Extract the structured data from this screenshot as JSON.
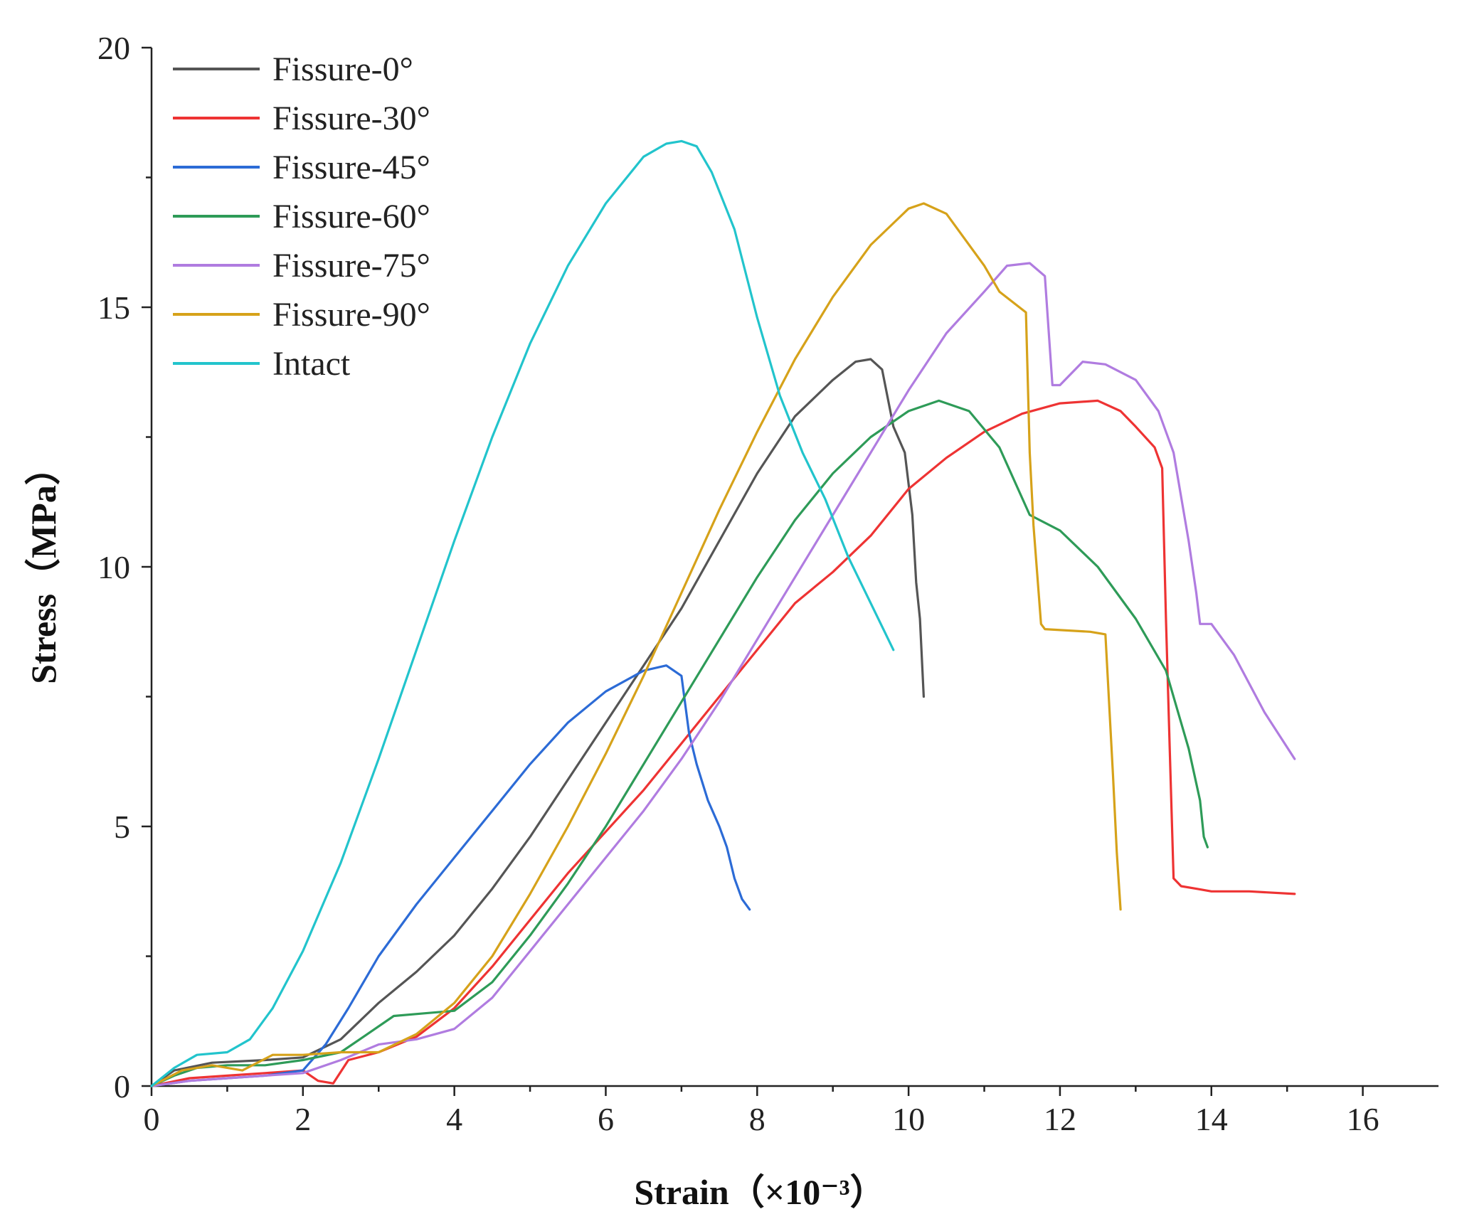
{
  "chart_data": {
    "type": "line",
    "title": "",
    "xlabel": "Strain（×10⁻³）",
    "ylabel": "Stress（MPa）",
    "xlim": [
      0,
      17
    ],
    "ylim": [
      0,
      20
    ],
    "xticks": [
      0,
      2,
      4,
      6,
      8,
      10,
      12,
      14,
      16
    ],
    "yticks": [
      0,
      5,
      10,
      15,
      20
    ],
    "legend_position": "top-left",
    "series": [
      {
        "name": "Fissure-0°",
        "color": "#555555",
        "x": [
          0,
          0.3,
          0.8,
          1.5,
          2.0,
          2.5,
          3.0,
          3.5,
          4.0,
          4.5,
          5.0,
          5.5,
          6.0,
          6.5,
          7.0,
          7.5,
          8.0,
          8.5,
          9.0,
          9.3,
          9.5,
          9.65,
          9.8,
          9.95,
          10.05,
          10.1,
          10.15,
          10.2
        ],
        "y": [
          0,
          0.3,
          0.45,
          0.5,
          0.55,
          0.9,
          1.6,
          2.2,
          2.9,
          3.8,
          4.8,
          5.9,
          7.0,
          8.1,
          9.2,
          10.5,
          11.8,
          12.9,
          13.6,
          13.95,
          14.0,
          13.8,
          12.7,
          12.2,
          11.0,
          9.7,
          9.0,
          7.5
        ]
      },
      {
        "name": "Fissure-30°",
        "color": "#ee3333",
        "x": [
          0,
          0.5,
          1.0,
          1.5,
          2.0,
          2.2,
          2.4,
          2.6,
          3.0,
          3.5,
          4.0,
          4.5,
          5.0,
          5.5,
          6.0,
          6.5,
          7.0,
          7.5,
          8.0,
          8.5,
          9.0,
          9.5,
          10.0,
          10.5,
          11.0,
          11.5,
          12.0,
          12.5,
          12.8,
          13.0,
          13.25,
          13.35,
          13.4,
          13.45,
          13.5,
          13.6,
          13.8,
          14.0,
          14.5,
          15.1
        ],
        "y": [
          0,
          0.15,
          0.2,
          0.25,
          0.3,
          0.1,
          0.05,
          0.5,
          0.65,
          0.95,
          1.5,
          2.3,
          3.2,
          4.1,
          4.9,
          5.7,
          6.6,
          7.5,
          8.4,
          9.3,
          9.9,
          10.6,
          11.5,
          12.1,
          12.6,
          12.95,
          13.15,
          13.2,
          13.0,
          12.7,
          12.3,
          11.9,
          9.0,
          6.5,
          4.0,
          3.85,
          3.8,
          3.75,
          3.75,
          3.7
        ]
      },
      {
        "name": "Fissure-45°",
        "color": "#2c6bd6",
        "x": [
          0,
          0.5,
          1.0,
          1.5,
          2.0,
          2.3,
          2.6,
          3.0,
          3.5,
          4.0,
          4.5,
          5.0,
          5.5,
          6.0,
          6.5,
          6.8,
          7.0,
          7.1,
          7.2,
          7.35,
          7.5,
          7.6,
          7.7,
          7.8,
          7.9
        ],
        "y": [
          0,
          0.1,
          0.15,
          0.2,
          0.3,
          0.8,
          1.5,
          2.5,
          3.5,
          4.4,
          5.3,
          6.2,
          7.0,
          7.6,
          8.0,
          8.1,
          7.9,
          6.8,
          6.2,
          5.5,
          5.0,
          4.6,
          4.0,
          3.6,
          3.4
        ]
      },
      {
        "name": "Fissure-60°",
        "color": "#2e9b58",
        "x": [
          0,
          0.3,
          0.6,
          1.0,
          1.5,
          2.0,
          2.5,
          2.8,
          3.2,
          3.6,
          4.0,
          4.5,
          5.0,
          5.5,
          6.0,
          6.5,
          7.0,
          7.5,
          8.0,
          8.5,
          9.0,
          9.5,
          10.0,
          10.4,
          10.8,
          11.2,
          11.6,
          12.0,
          12.5,
          13.0,
          13.4,
          13.7,
          13.85,
          13.9,
          13.95
        ],
        "y": [
          0,
          0.2,
          0.35,
          0.4,
          0.4,
          0.5,
          0.65,
          0.95,
          1.35,
          1.4,
          1.45,
          2.0,
          2.9,
          3.9,
          5.0,
          6.2,
          7.4,
          8.6,
          9.8,
          10.9,
          11.8,
          12.5,
          13.0,
          13.2,
          13.0,
          12.3,
          11.0,
          10.7,
          10.0,
          9.0,
          8.0,
          6.5,
          5.5,
          4.8,
          4.6
        ]
      },
      {
        "name": "Fissure-75°",
        "color": "#b07ce0",
        "x": [
          0,
          0.5,
          1.0,
          1.5,
          2.0,
          2.5,
          3.0,
          3.5,
          4.0,
          4.5,
          5.0,
          5.5,
          6.0,
          6.5,
          7.0,
          7.5,
          8.0,
          8.5,
          9.0,
          9.5,
          10.0,
          10.5,
          11.0,
          11.3,
          11.6,
          11.8,
          11.9,
          12.0,
          12.3,
          12.6,
          13.0,
          13.3,
          13.5,
          13.7,
          13.8,
          13.85,
          14.0,
          14.3,
          14.7,
          15.1
        ],
        "y": [
          0,
          0.1,
          0.15,
          0.2,
          0.25,
          0.5,
          0.8,
          0.9,
          1.1,
          1.7,
          2.6,
          3.5,
          4.4,
          5.3,
          6.3,
          7.4,
          8.6,
          9.8,
          11.0,
          12.2,
          13.4,
          14.5,
          15.3,
          15.8,
          15.85,
          15.6,
          13.5,
          13.5,
          13.95,
          13.9,
          13.6,
          13.0,
          12.2,
          10.5,
          9.5,
          8.9,
          8.9,
          8.3,
          7.2,
          6.3
        ]
      },
      {
        "name": "Fissure-90°",
        "color": "#d6a21a",
        "x": [
          0,
          0.4,
          0.8,
          1.2,
          1.6,
          2.0,
          2.5,
          3.0,
          3.5,
          4.0,
          4.5,
          5.0,
          5.5,
          6.0,
          6.5,
          7.0,
          7.5,
          8.0,
          8.5,
          9.0,
          9.5,
          10.0,
          10.2,
          10.5,
          11.0,
          11.2,
          11.55,
          11.6,
          11.65,
          11.75,
          11.8,
          12.4,
          12.6,
          12.7,
          12.75,
          12.8
        ],
        "y": [
          0,
          0.3,
          0.4,
          0.3,
          0.6,
          0.6,
          0.65,
          0.65,
          1.0,
          1.6,
          2.5,
          3.7,
          5.0,
          6.4,
          7.9,
          9.5,
          11.1,
          12.6,
          14.0,
          15.2,
          16.2,
          16.9,
          17.0,
          16.8,
          15.8,
          15.3,
          14.9,
          12.2,
          10.8,
          8.9,
          8.8,
          8.75,
          8.7,
          6.0,
          4.5,
          3.4
        ]
      },
      {
        "name": "Intact",
        "color": "#22c4cc",
        "x": [
          0,
          0.3,
          0.6,
          1.0,
          1.3,
          1.6,
          2.0,
          2.5,
          3.0,
          3.5,
          4.0,
          4.5,
          5.0,
          5.5,
          6.0,
          6.5,
          6.8,
          7.0,
          7.2,
          7.4,
          7.7,
          8.0,
          8.3,
          8.6,
          8.9,
          9.2,
          9.5,
          9.7,
          9.8
        ],
        "y": [
          0,
          0.35,
          0.6,
          0.65,
          0.9,
          1.5,
          2.6,
          4.3,
          6.3,
          8.4,
          10.5,
          12.5,
          14.3,
          15.8,
          17.0,
          17.9,
          18.15,
          18.2,
          18.1,
          17.6,
          16.5,
          14.8,
          13.3,
          12.2,
          11.3,
          10.2,
          9.3,
          8.7,
          8.4
        ]
      }
    ]
  }
}
